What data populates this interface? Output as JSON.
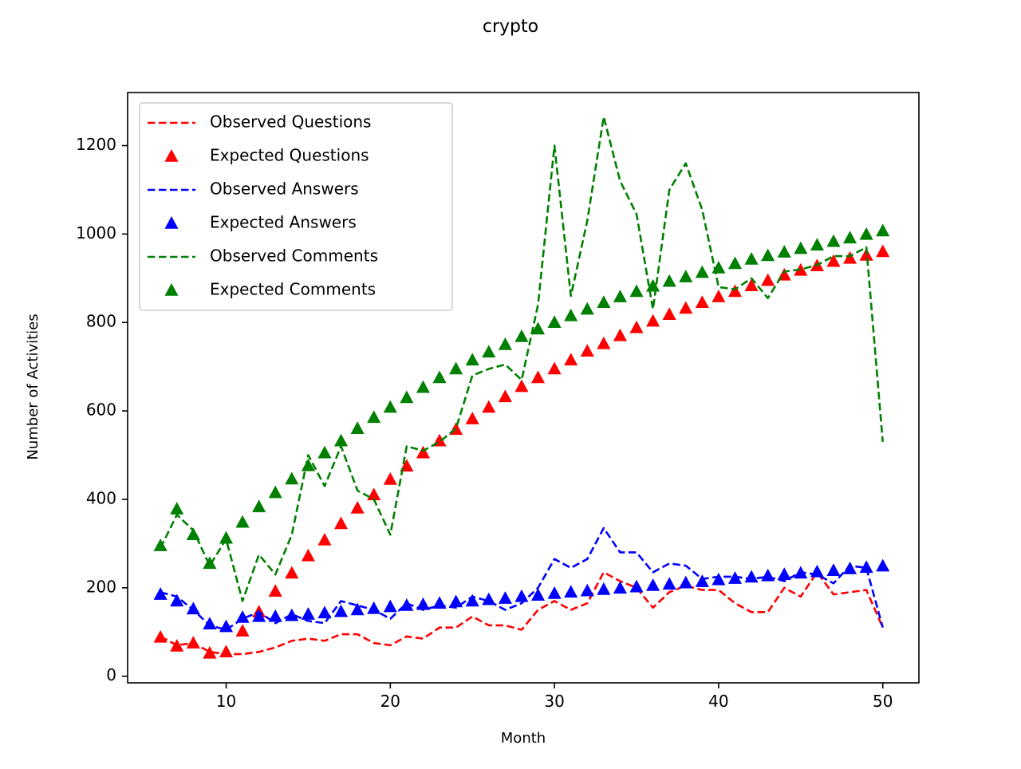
{
  "chart_data": {
    "type": "line",
    "title": "crypto",
    "xlabel": "Month",
    "ylabel": "Number of Activities",
    "xlim": [
      4,
      52.2
    ],
    "ylim": [
      -15,
      1320
    ],
    "xticks": [
      10,
      20,
      30,
      40,
      50
    ],
    "yticks": [
      0,
      200,
      400,
      600,
      800,
      1000,
      1200
    ],
    "grid": false,
    "legend_position": "top-left",
    "x": [
      6,
      7,
      8,
      9,
      10,
      11,
      12,
      13,
      14,
      15,
      16,
      17,
      18,
      19,
      20,
      21,
      22,
      23,
      24,
      25,
      26,
      27,
      28,
      29,
      30,
      31,
      32,
      33,
      34,
      35,
      36,
      37,
      38,
      39,
      40,
      41,
      42,
      43,
      44,
      45,
      46,
      47,
      48,
      49,
      50
    ],
    "series": [
      {
        "name": "Observed Questions",
        "style": "dashed",
        "color": "#ff0000",
        "values": [
          90,
          70,
          75,
          55,
          50,
          50,
          55,
          65,
          80,
          85,
          80,
          95,
          95,
          75,
          70,
          90,
          85,
          110,
          110,
          135,
          115,
          115,
          105,
          150,
          170,
          150,
          165,
          235,
          215,
          200,
          155,
          190,
          205,
          195,
          195,
          165,
          145,
          145,
          200,
          180,
          235,
          185,
          190,
          195,
          110
        ]
      },
      {
        "name": "Expected Questions",
        "style": "triangle",
        "color": "#ff0000",
        "values": [
          88,
          68,
          75,
          52,
          55,
          102,
          145,
          192,
          233,
          272,
          308,
          345,
          380,
          410,
          445,
          475,
          505,
          532,
          558,
          582,
          608,
          632,
          655,
          675,
          695,
          715,
          735,
          752,
          770,
          788,
          803,
          818,
          832,
          845,
          858,
          870,
          883,
          895,
          907,
          918,
          928,
          938,
          945,
          952,
          960
        ]
      },
      {
        "name": "Observed Answers",
        "style": "dashed",
        "color": "#0000ff",
        "values": [
          190,
          180,
          150,
          115,
          105,
          130,
          145,
          120,
          140,
          125,
          120,
          170,
          160,
          150,
          130,
          165,
          150,
          160,
          155,
          180,
          170,
          150,
          165,
          200,
          265,
          245,
          265,
          335,
          280,
          280,
          235,
          255,
          250,
          220,
          225,
          225,
          220,
          225,
          215,
          235,
          230,
          210,
          250,
          245,
          110
        ]
      },
      {
        "name": "Expected Answers",
        "style": "triangle",
        "color": "#0000ff",
        "values": [
          185,
          170,
          152,
          118,
          112,
          133,
          135,
          135,
          137,
          140,
          143,
          146,
          150,
          153,
          157,
          160,
          162,
          165,
          168,
          170,
          173,
          176,
          180,
          183,
          187,
          190,
          193,
          196,
          199,
          202,
          205,
          208,
          211,
          214,
          218,
          221,
          224,
          227,
          230,
          233,
          236,
          239,
          243,
          246,
          249
        ]
      },
      {
        "name": "Observed Comments",
        "style": "dashed",
        "color": "#008000",
        "values": [
          290,
          365,
          330,
          250,
          310,
          170,
          275,
          230,
          320,
          500,
          430,
          520,
          420,
          400,
          320,
          520,
          510,
          530,
          560,
          680,
          695,
          705,
          670,
          840,
          1200,
          860,
          1030,
          1265,
          1120,
          1045,
          830,
          1100,
          1160,
          1055,
          880,
          875,
          900,
          855,
          915,
          920,
          930,
          950,
          950,
          970,
          530
        ]
      },
      {
        "name": "Expected Comments",
        "style": "triangle",
        "color": "#008000",
        "values": [
          295,
          378,
          320,
          255,
          312,
          348,
          383,
          415,
          446,
          476,
          505,
          532,
          560,
          585,
          608,
          630,
          653,
          675,
          695,
          715,
          733,
          750,
          768,
          785,
          800,
          815,
          830,
          845,
          858,
          870,
          882,
          893,
          903,
          913,
          923,
          933,
          943,
          951,
          959,
          967,
          975,
          983,
          991,
          999,
          1007
        ]
      }
    ]
  }
}
